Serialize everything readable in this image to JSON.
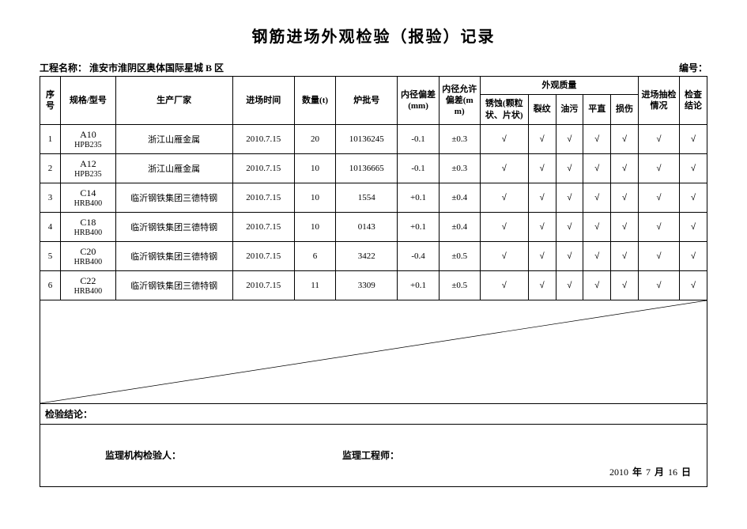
{
  "title": "钢筋进场外观检验（报验）记录",
  "meta": {
    "project_label": "工程名称：",
    "project_name": "淮安市淮阴区奥体国际星城 B 区",
    "serial_label": "编号："
  },
  "headers": {
    "seq": "序号",
    "spec": "规格/型号",
    "manufacturer": "生产厂家",
    "arrive_time": "进场时间",
    "qty": "数量(t)",
    "batch": "炉批号",
    "inner_dev": "内径偏差(mm)",
    "inner_tol": "内径允许偏差(mm)",
    "appearance_group": "外观质量",
    "corrosion": "锈蚀(颗粒状、片状)",
    "crack": "裂纹",
    "oil": "油污",
    "straight": "平直",
    "damage": "损伤",
    "sampling": "进场抽检情况",
    "result": "检查结论"
  },
  "rows": [
    {
      "seq": "1",
      "spec_main": "A10",
      "spec_sub": "HPB235",
      "manufacturer": "浙江山雁金属",
      "arrive": "2010.7.15",
      "qty": "20",
      "batch": "10136245",
      "dev": "-0.1",
      "tol": "±0.3",
      "c1": "√",
      "c2": "√",
      "c3": "√",
      "c4": "√",
      "c5": "√",
      "sampling": "√",
      "result": "√"
    },
    {
      "seq": "2",
      "spec_main": "A12",
      "spec_sub": "HPB235",
      "manufacturer": "浙江山雁金属",
      "arrive": "2010.7.15",
      "qty": "10",
      "batch": "10136665",
      "dev": "-0.1",
      "tol": "±0.3",
      "c1": "√",
      "c2": "√",
      "c3": "√",
      "c4": "√",
      "c5": "√",
      "sampling": "√",
      "result": "√"
    },
    {
      "seq": "3",
      "spec_main": "C14",
      "spec_sub": "HRB400",
      "manufacturer": "临沂钢铁集团三德特钢",
      "arrive": "2010.7.15",
      "qty": "10",
      "batch": "1554",
      "dev": "+0.1",
      "tol": "±0.4",
      "c1": "√",
      "c2": "√",
      "c3": "√",
      "c4": "√",
      "c5": "√",
      "sampling": "√",
      "result": "√"
    },
    {
      "seq": "4",
      "spec_main": "C18",
      "spec_sub": "HRB400",
      "manufacturer": "临沂钢铁集团三德特钢",
      "arrive": "2010.7.15",
      "qty": "10",
      "batch": "0143",
      "dev": "+0.1",
      "tol": "±0.4",
      "c1": "√",
      "c2": "√",
      "c3": "√",
      "c4": "√",
      "c5": "√",
      "sampling": "√",
      "result": "√"
    },
    {
      "seq": "5",
      "spec_main": "C20",
      "spec_sub": "HRB400",
      "manufacturer": "临沂钢铁集团三德特钢",
      "arrive": "2010.7.15",
      "qty": "6",
      "batch": "3422",
      "dev": "-0.4",
      "tol": "±0.5",
      "c1": "√",
      "c2": "√",
      "c3": "√",
      "c4": "√",
      "c5": "√",
      "sampling": "√",
      "result": "√"
    },
    {
      "seq": "6",
      "spec_main": "C22",
      "spec_sub": "HRB400",
      "manufacturer": "临沂钢铁集团三德特钢",
      "arrive": "2010.7.15",
      "qty": "11",
      "batch": "3309",
      "dev": "+0.1",
      "tol": "±0.5",
      "c1": "√",
      "c2": "√",
      "c3": "√",
      "c4": "√",
      "c5": "√",
      "sampling": "√",
      "result": "√"
    }
  ],
  "conclusion_label": "检验结论：",
  "footer": {
    "inspector_label": "监理机构检验人：",
    "engineer_label": "监理工程师：",
    "date_year": "2010",
    "y": "年",
    "date_month": "7",
    "m": "月",
    "date_day": "16",
    "d": "日"
  },
  "col_widths_pct": [
    3,
    8,
    17,
    9,
    6,
    9,
    6,
    6,
    7,
    4,
    4,
    4,
    4,
    6,
    4
  ],
  "colors": {
    "border": "#000000",
    "bg": "#ffffff",
    "text": "#000000"
  }
}
